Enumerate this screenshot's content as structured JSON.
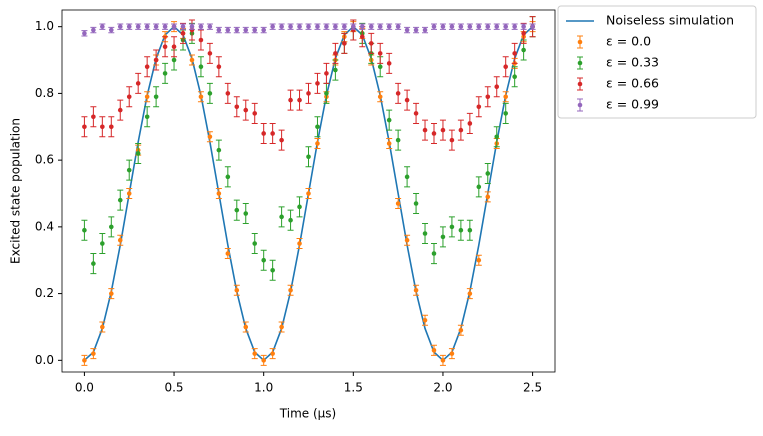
{
  "chart_data": {
    "type": "line",
    "xlabel": "Time (µs)",
    "ylabel": "Excited state population",
    "xlim": [
      -0.125,
      2.625
    ],
    "ylim": [
      -0.035,
      1.05
    ],
    "xticks": [
      {
        "value": 0,
        "label": "0.0"
      },
      {
        "value": 0.5,
        "label": "0.5"
      },
      {
        "value": 1,
        "label": "1.0"
      },
      {
        "value": 1.5,
        "label": "1.5"
      },
      {
        "value": 2,
        "label": "2.0"
      },
      {
        "value": 2.5,
        "label": "2.5"
      }
    ],
    "yticks": [
      {
        "value": 0,
        "label": "0.0"
      },
      {
        "value": 0.2,
        "label": "0.2"
      },
      {
        "value": 0.4,
        "label": "0.4"
      },
      {
        "value": 0.6,
        "label": "0.6"
      },
      {
        "value": 0.8,
        "label": "0.8"
      },
      {
        "value": 1,
        "label": "1.0"
      }
    ],
    "grid": false,
    "legend": "outside-upper-right",
    "x": [
      0,
      0.05,
      0.1,
      0.15,
      0.2,
      0.25,
      0.3,
      0.35,
      0.4,
      0.45,
      0.5,
      0.55,
      0.6,
      0.65,
      0.7,
      0.75,
      0.8,
      0.85,
      0.9,
      0.95,
      1,
      1.05,
      1.1,
      1.15,
      1.2,
      1.25,
      1.3,
      1.35,
      1.4,
      1.45,
      1.5,
      1.55,
      1.6,
      1.65,
      1.7,
      1.75,
      1.8,
      1.85,
      1.9,
      1.95,
      2,
      2.05,
      2.1,
      2.15,
      2.2,
      2.25,
      2.3,
      2.35,
      2.4,
      2.45,
      2.5
    ],
    "series": [
      {
        "name": "Noiseless simulation",
        "kind": "line",
        "color": "#1f77b4",
        "values": [
          0,
          0.0245,
          0.0955,
          0.2061,
          0.3455,
          0.5,
          0.6545,
          0.7939,
          0.9045,
          0.9755,
          1,
          0.9755,
          0.9045,
          0.7939,
          0.6545,
          0.5,
          0.3455,
          0.2061,
          0.0955,
          0.0245,
          0,
          0.0245,
          0.0955,
          0.2061,
          0.3455,
          0.5,
          0.6545,
          0.7939,
          0.9045,
          0.9755,
          1,
          0.9755,
          0.9045,
          0.7939,
          0.6545,
          0.5,
          0.3455,
          0.2061,
          0.0955,
          0.0245,
          0,
          0.0245,
          0.0955,
          0.2061,
          0.3455,
          0.5,
          0.6545,
          0.7939,
          0.9045,
          0.9755,
          1
        ]
      },
      {
        "name": "ε = 0.0",
        "kind": "errorbar",
        "color": "#ff7f0e",
        "error": 0.015,
        "values": [
          0,
          0.02,
          0.1,
          0.2,
          0.36,
          0.5,
          0.63,
          0.79,
          0.9,
          0.97,
          1,
          0.98,
          0.9,
          0.79,
          0.67,
          0.5,
          0.32,
          0.21,
          0.1,
          0.02,
          0,
          0.02,
          0.1,
          0.21,
          0.35,
          0.5,
          0.65,
          0.79,
          0.9,
          0.97,
          1,
          0.98,
          0.9,
          0.79,
          0.65,
          0.47,
          0.36,
          0.21,
          0.12,
          0.03,
          0,
          0.02,
          0.09,
          0.2,
          0.3,
          0.49,
          0.65,
          0.79,
          0.89,
          0.97,
          1
        ]
      },
      {
        "name": "ε = 0.33",
        "kind": "errorbar",
        "color": "#2ca02c",
        "error": 0.03,
        "values": [
          0.39,
          0.29,
          0.35,
          0.4,
          0.48,
          0.57,
          0.62,
          0.73,
          0.79,
          0.86,
          0.9,
          0.96,
          0.98,
          0.88,
          0.8,
          0.63,
          0.55,
          0.45,
          0.44,
          0.35,
          0.3,
          0.27,
          0.43,
          0.42,
          0.46,
          0.61,
          0.7,
          0.8,
          0.87,
          0.95,
          0.99,
          0.98,
          0.92,
          0.88,
          0.72,
          0.66,
          0.55,
          0.47,
          0.38,
          0.32,
          0.37,
          0.4,
          0.39,
          0.39,
          0.52,
          0.56,
          0.67,
          0.74,
          0.85,
          0.93,
          1
        ]
      },
      {
        "name": "ε = 0.66",
        "kind": "errorbar",
        "color": "#d62728",
        "error": 0.03,
        "values": [
          0.7,
          0.73,
          0.7,
          0.7,
          0.75,
          0.79,
          0.83,
          0.88,
          0.9,
          0.94,
          0.94,
          0.98,
          0.99,
          0.96,
          0.92,
          0.88,
          0.8,
          0.76,
          0.75,
          0.74,
          0.68,
          0.68,
          0.66,
          0.78,
          0.78,
          0.8,
          0.83,
          0.86,
          0.92,
          0.95,
          0.99,
          0.97,
          0.95,
          0.92,
          0.89,
          0.8,
          0.78,
          0.74,
          0.69,
          0.68,
          0.69,
          0.66,
          0.69,
          0.71,
          0.76,
          0.79,
          0.82,
          0.88,
          0.92,
          0.98,
          1
        ]
      },
      {
        "name": "ε = 0.99",
        "kind": "errorbar",
        "color": "#9467bd",
        "error": 0.008,
        "values": [
          0.98,
          0.99,
          1,
          0.99,
          1,
          1,
          1,
          1,
          1,
          1,
          1,
          1,
          1,
          1,
          1,
          0.99,
          0.99,
          0.99,
          0.99,
          0.99,
          0.99,
          1,
          1,
          1,
          1,
          1,
          1,
          1,
          1,
          1,
          1,
          1,
          1,
          1,
          1,
          1,
          0.99,
          0.99,
          0.99,
          1,
          1,
          1,
          1,
          1,
          1,
          1,
          1,
          1,
          1,
          1,
          1
        ]
      }
    ]
  }
}
